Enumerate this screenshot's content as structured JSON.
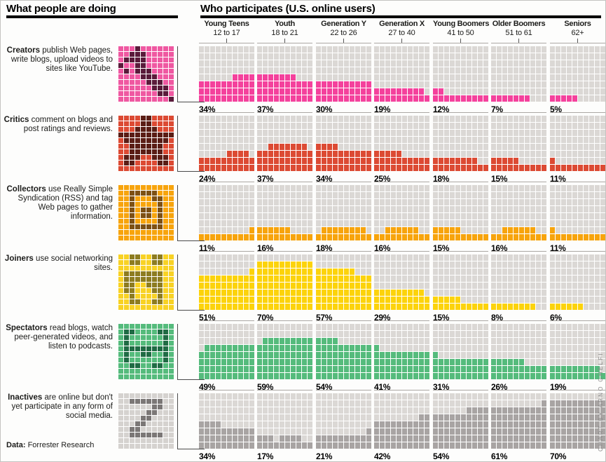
{
  "left_header": {
    "title": "What people are doing"
  },
  "right_header": {
    "title": "Who participates (U.S. online users)"
  },
  "columns": [
    {
      "name": "Young Teens",
      "ages": "12 to 17"
    },
    {
      "name": "Youth",
      "ages": "18 to 21"
    },
    {
      "name": "Generation Y",
      "ages": "22 to 26"
    },
    {
      "name": "Generation X",
      "ages": "27 to 40"
    },
    {
      "name": "Young Boomers",
      "ages": "41 to 50"
    },
    {
      "name": "Older Boomers",
      "ages": "51 to 61"
    },
    {
      "name": "Seniors",
      "ages": "62+"
    }
  ],
  "rows": [
    {
      "key": "creators",
      "term": "Creators",
      "description": "publish Web pages, write blogs, upload videos to sites like YouTube.",
      "color": "#f4419c",
      "icon_bg": "#ef58a1",
      "icon_dark": "#5a1a3a",
      "icon": [
        "...X......",
        "..XXX.....",
        ".XXXX.....",
        "X..XX.....",
        ".X.XXX....",
        "....XXX...",
        ".....XXX..",
        "......XXX.",
        ".......XX.",
        ".........X"
      ],
      "partial_cols": [
        [
          6,
          7,
          8,
          9
        ],
        [
          0,
          1,
          2,
          3,
          4,
          5,
          6
        ],
        [],
        [
          0,
          1,
          2,
          3,
          4,
          5,
          6,
          7,
          8
        ],
        [
          0,
          1
        ],
        [
          0,
          1,
          2,
          3,
          4,
          5,
          6
        ],
        [
          0,
          1,
          2,
          3,
          4
        ]
      ]
    },
    {
      "key": "critics",
      "term": "Critics",
      "description": "comment on blogs and post ratings and reviews.",
      "color": "#dc4a33",
      "icon_bg": "#dc4a33",
      "icon_dark": "#5a1d15",
      "icon": [
        "....XX....",
        "....XX....",
        "...XXXX...",
        "XXXXXXXXXX",
        ".XXXXXXXX.",
        "..XXXXXX..",
        "..XXXXXX..",
        ".XXX..XXX.",
        ".XX....XX.",
        ".........."
      ],
      "partial_cols": [
        [
          5,
          6,
          7,
          8
        ],
        [
          2,
          3,
          4,
          5,
          6,
          7,
          8
        ],
        [
          0,
          1,
          2,
          3
        ],
        [
          0,
          1,
          2,
          3,
          4
        ],
        [
          0,
          1,
          2,
          3,
          4,
          5,
          6,
          7
        ],
        [
          0,
          1,
          2,
          3,
          4
        ],
        [
          0
        ]
      ]
    },
    {
      "key": "collectors",
      "term": "Collectors",
      "description": "use Really Simple Syndication (RSS) and tag Web pages to gather information.",
      "color": "#f7a40c",
      "icon_bg": "#f7a40c",
      "icon_dark": "#7d5014",
      "icon": [
        "..........",
        "..XXXXX...",
        "..X...XX..",
        "..X....X..",
        "..X.XX.X..",
        "..X.XX.X..",
        "..X....X..",
        "..XXXXXX..",
        "..........",
        ".........."
      ],
      "partial_cols": [
        [
          9
        ],
        [
          0,
          1,
          2,
          3,
          4,
          5
        ],
        [
          1,
          2,
          3,
          4,
          5,
          6,
          7,
          8
        ],
        [
          2,
          3,
          4,
          5,
          6,
          7
        ],
        [
          0,
          1,
          2,
          3,
          4
        ],
        [
          2,
          3,
          4,
          5,
          6,
          7
        ],
        [
          0
        ]
      ]
    },
    {
      "key": "joiners",
      "term": "Joiners",
      "description": "use social networking sites.",
      "color": "#fcd30b",
      "icon_bg": "#f8d224",
      "icon_dark": "#8d7c20",
      "icon": [
        "..XX..XX..",
        "..XX..XX..",
        "..........",
        ".XXXXXXX..",
        ".XXXXXXX..",
        ".XX..XXX..",
        ".XX...XX..",
        "..X....X..",
        "..XX..XX..",
        ".........."
      ],
      "partial_cols": [
        [
          9
        ],
        [],
        [
          0,
          1,
          2,
          3,
          4,
          5,
          6
        ],
        [
          0,
          1,
          2,
          3,
          4,
          5,
          6,
          7,
          8
        ],
        [
          0,
          1,
          2,
          3,
          4
        ],
        [
          0,
          1,
          2,
          3,
          4,
          5,
          6,
          7
        ],
        [
          0,
          1,
          2,
          3,
          4,
          5
        ]
      ]
    },
    {
      "key": "spectators",
      "term": "Spectators",
      "description": "read blogs, watch peer-generated videos, and listen to podcasts.",
      "color": "#55bb7c",
      "icon_bg": "#55bb7c",
      "icon_dark": "#1f6b44",
      "icon": [
        "..........",
        ".XX....XX.",
        ".X......X.",
        ".X......X.",
        ".XXXXXXXX.",
        ".X..XX..X.",
        ".X......X.",
        "..XX..XX..",
        "..........",
        ".........."
      ],
      "partial_cols": [
        [
          1,
          2,
          3,
          4,
          5,
          6,
          7,
          8,
          9
        ],
        [
          1,
          2,
          3,
          4,
          5,
          6,
          7,
          8,
          9
        ],
        [
          0,
          1,
          2,
          3
        ],
        [
          0
        ],
        [
          0
        ],
        [
          0,
          1,
          2,
          3,
          4,
          5
        ],
        [
          0,
          1,
          2,
          3,
          4,
          5,
          6,
          7,
          8
        ]
      ]
    },
    {
      "key": "inactives",
      "term": "Inactives",
      "description": "are online but don't yet participate in any form of social media.",
      "color": "#a8a4a3",
      "icon_bg": "#d5d2cf",
      "icon_dark": "#7b7776",
      "icon": [
        "..........",
        "..XXXXXX..",
        "......XX..",
        ".....XX...",
        "....XX....",
        "...XX.....",
        "..XX......",
        "..XXXXXX..",
        "..........",
        ".........."
      ],
      "partial_cols": [
        [
          0,
          1,
          2,
          3
        ],
        [
          0,
          1,
          2,
          4,
          5,
          6,
          7
        ],
        [
          9
        ],
        [
          8,
          9
        ],
        [
          6,
          7,
          8,
          9
        ],
        [
          9
        ],
        []
      ]
    }
  ],
  "empty_cell_color": "#dbd8d5",
  "footer": {
    "data_label": "Data:",
    "data_source": "Forrester Research"
  },
  "credit": "CHART BY ARNO GHELFI",
  "chart_data": {
    "type": "bar",
    "title": "Who participates (U.S. online users)",
    "subtitle": "What people are doing",
    "unit": "%",
    "ylim": [
      0,
      80
    ],
    "grid": "waffle (10 columns x 8 rows per panel, 1 square = 1%)",
    "legend_position": "left row labels",
    "categories": [
      "Young Teens 12 to 17",
      "Youth 18 to 21",
      "Generation Y 22 to 26",
      "Generation X 27 to 40",
      "Young Boomers 41 to 50",
      "Older Boomers 51 to 61",
      "Seniors 62+"
    ],
    "series": [
      {
        "name": "Creators",
        "values": [
          34,
          37,
          30,
          19,
          12,
          7,
          5
        ]
      },
      {
        "name": "Critics",
        "values": [
          24,
          37,
          34,
          25,
          18,
          15,
          11
        ]
      },
      {
        "name": "Collectors",
        "values": [
          11,
          16,
          18,
          16,
          15,
          16,
          11
        ]
      },
      {
        "name": "Joiners",
        "values": [
          51,
          70,
          57,
          29,
          15,
          8,
          6
        ]
      },
      {
        "name": "Spectators",
        "values": [
          49,
          59,
          54,
          41,
          31,
          26,
          19
        ]
      },
      {
        "name": "Inactives",
        "values": [
          34,
          17,
          21,
          42,
          54,
          61,
          70
        ]
      }
    ],
    "source": "Forrester Research",
    "credit": "CHART BY ARNO GHELFI"
  }
}
